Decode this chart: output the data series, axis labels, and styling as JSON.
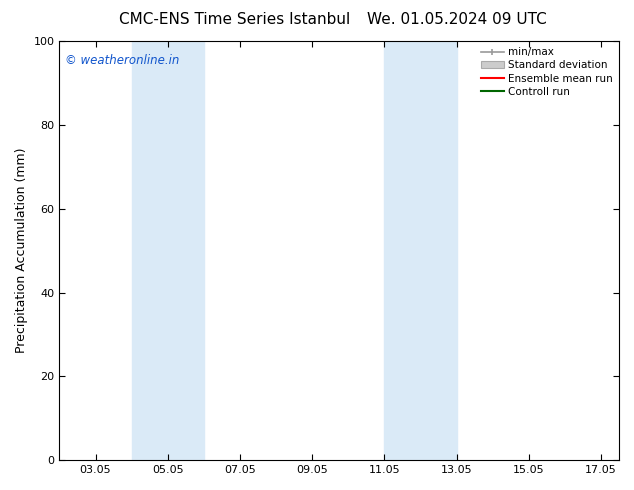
{
  "title_left": "CMC-ENS Time Series Istanbul",
  "title_right": "We. 01.05.2024 09 UTC",
  "ylabel": "Precipitation Accumulation (mm)",
  "xlim": [
    2.0,
    17.5
  ],
  "ylim": [
    0,
    100
  ],
  "yticks": [
    0,
    20,
    40,
    60,
    80,
    100
  ],
  "xtick_labels": [
    "03.05",
    "05.05",
    "07.05",
    "09.05",
    "11.05",
    "13.05",
    "15.05",
    "17.05"
  ],
  "xtick_positions": [
    3.0,
    5.0,
    7.0,
    9.0,
    11.0,
    13.0,
    15.0,
    17.0
  ],
  "shaded_bands": [
    {
      "x_start": 4.0,
      "x_end": 5.0
    },
    {
      "x_start": 5.0,
      "x_end": 6.0
    },
    {
      "x_start": 11.0,
      "x_end": 12.0
    },
    {
      "x_start": 12.0,
      "x_end": 13.0
    }
  ],
  "shade_color": "#daeaf7",
  "watermark_text": "© weatheronline.in",
  "watermark_color": "#1155cc",
  "background_color": "#ffffff",
  "plot_bg_color": "#ffffff",
  "title_fontsize": 11,
  "tick_fontsize": 8,
  "ylabel_fontsize": 9
}
